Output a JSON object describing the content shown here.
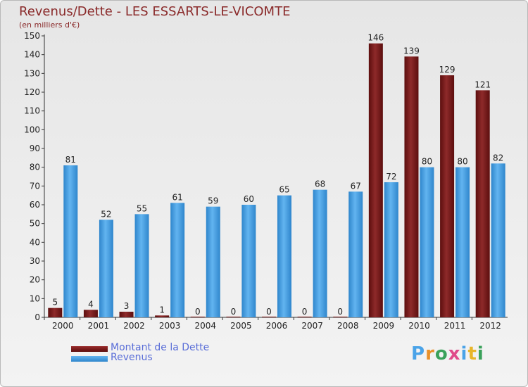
{
  "chart_data": {
    "type": "bar",
    "title": "Revenus/Dette - LES ESSARTS-LE-VICOMTE",
    "subtitle": "(en milliers d'€)",
    "categories": [
      "2000",
      "2001",
      "2002",
      "2003",
      "2004",
      "2005",
      "2006",
      "2007",
      "2008",
      "2009",
      "2010",
      "2011",
      "2012"
    ],
    "series": [
      {
        "name": "Montant de la Dette",
        "color": "#7a1515",
        "values": [
          5,
          4,
          3,
          1,
          0,
          0,
          0,
          0,
          0,
          146,
          139,
          129,
          121
        ]
      },
      {
        "name": "Revenus",
        "color": "#4aa3e8",
        "values": [
          81,
          52,
          55,
          61,
          59,
          60,
          65,
          68,
          67,
          72,
          80,
          80,
          82
        ]
      }
    ],
    "yticks": [
      0,
      10,
      20,
      30,
      40,
      50,
      60,
      70,
      80,
      90,
      100,
      110,
      120,
      130,
      140,
      150
    ],
    "ylim": [
      0,
      150
    ],
    "grid": false,
    "legend_position": "bottom-left"
  },
  "logo": {
    "text": "Proxiti",
    "colors": [
      "#4aa3e8",
      "#e8902a",
      "#3aa15a",
      "#e04b8a",
      "#4aa3e8",
      "#e8b62a",
      "#3aa15a"
    ]
  }
}
